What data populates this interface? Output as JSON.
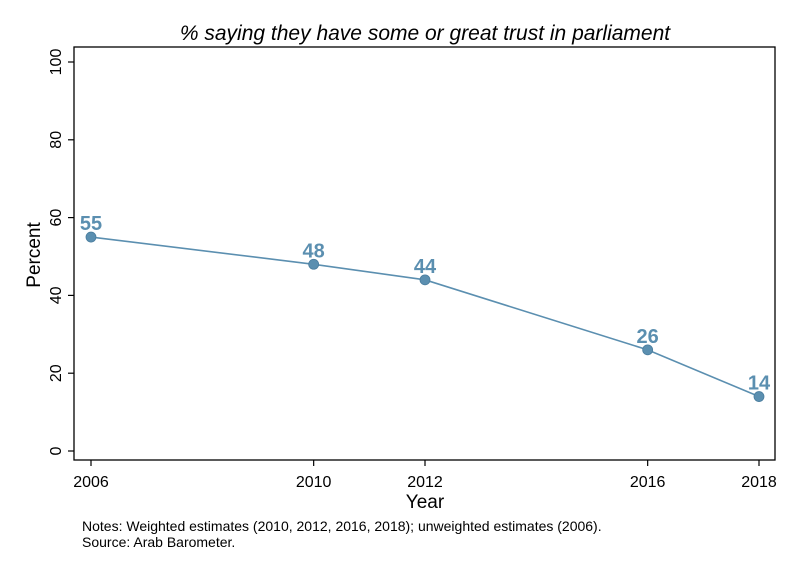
{
  "chart_data": {
    "type": "line",
    "title": "% saying they have some or great trust in parliament",
    "xlabel": "Year",
    "ylabel": "Percent",
    "x": [
      2006,
      2010,
      2012,
      2016,
      2018
    ],
    "series": [
      {
        "values": [
          55,
          48,
          44,
          26,
          14
        ]
      }
    ],
    "data_labels": [
      "55",
      "48",
      "44",
      "26",
      "14"
    ],
    "x_ticks": [
      "2006",
      "2010",
      "2012",
      "2016",
      "2018"
    ],
    "y_ticks": [
      "0",
      "20",
      "40",
      "60",
      "80",
      "100"
    ],
    "ylim": [
      0,
      100
    ],
    "xlim": [
      2006,
      2018
    ],
    "grid": false,
    "line_color": "#5b8fb0"
  },
  "notes": {
    "line1": "Notes: Weighted estimates (2010, 2012, 2016, 2018); unweighted estimates (2006).",
    "line2": "Source: Arab Barometer."
  }
}
